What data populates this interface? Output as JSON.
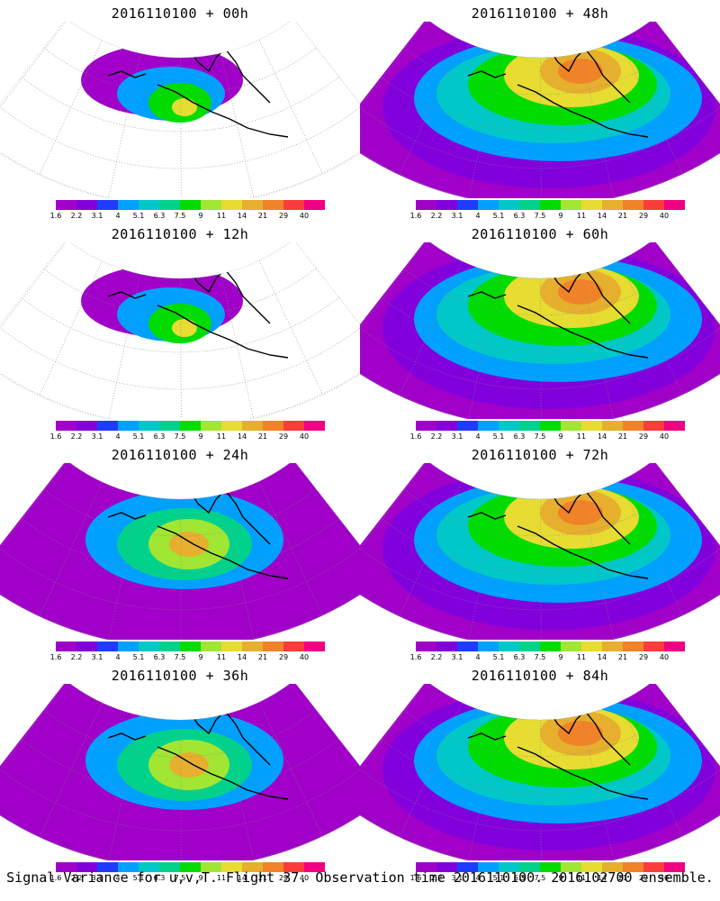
{
  "panels": [
    {
      "title": "2016110100 + 00h",
      "style": "sparse"
    },
    {
      "title": "2016110100 + 48h",
      "style": "full"
    },
    {
      "title": "2016110100 + 12h",
      "style": "sparse"
    },
    {
      "title": "2016110100 + 60h",
      "style": "full"
    },
    {
      "title": "2016110100 + 24h",
      "style": "mid"
    },
    {
      "title": "2016110100 + 72h",
      "style": "full"
    },
    {
      "title": "2016110100 + 36h",
      "style": "mid"
    },
    {
      "title": "2016110100 + 84h",
      "style": "full"
    }
  ],
  "colorbar": {
    "colors": [
      "#a000c8",
      "#8200dc",
      "#1e3cff",
      "#00a0ff",
      "#00c8c8",
      "#00d28c",
      "#00dc00",
      "#a0e632",
      "#e6dc32",
      "#e6af2d",
      "#f08228",
      "#fa3c3c",
      "#f00082"
    ],
    "labels": [
      "1.6",
      "2.2",
      "3.1",
      "4",
      "5.1",
      "6.3",
      "7.5",
      "9",
      "11",
      "14",
      "21",
      "29",
      "40"
    ]
  },
  "caption": "Signal Variance for u,v,T. Flight 37. Observation time 2016110100. 2016102700 ensemble."
}
